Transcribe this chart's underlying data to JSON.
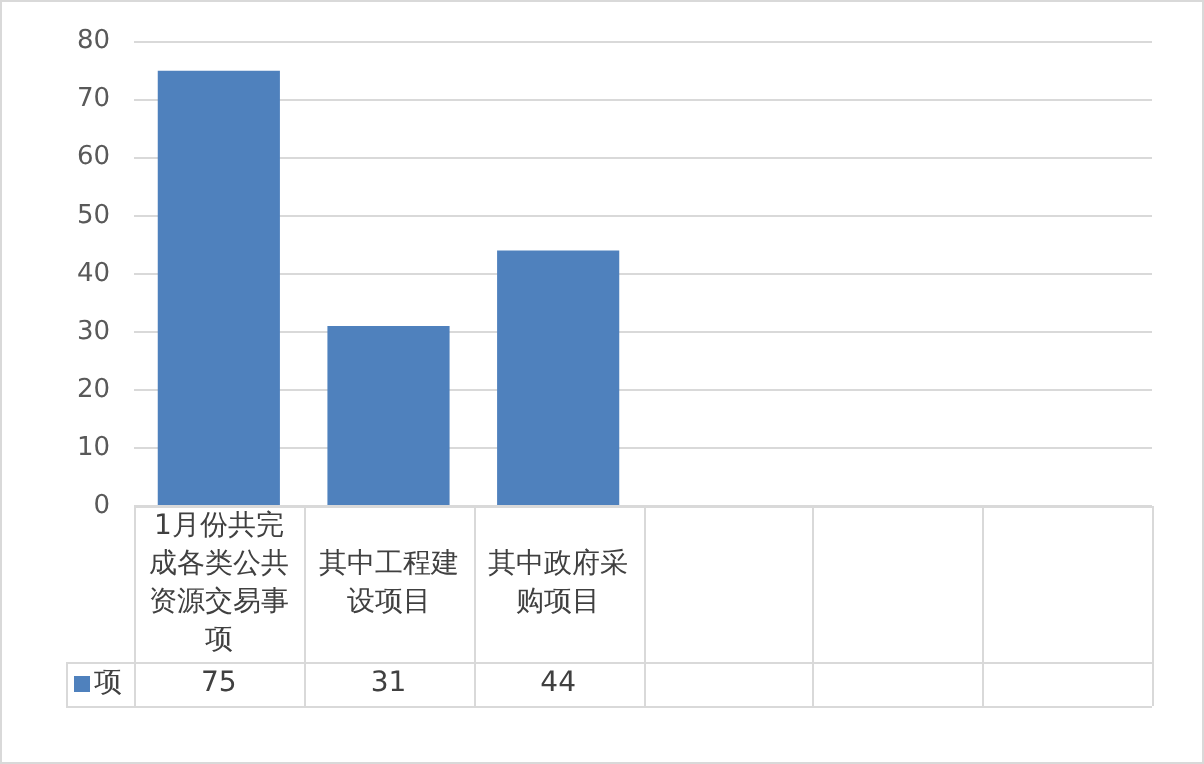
{
  "chart_data": {
    "type": "bar",
    "categories": [
      "1月份共完成各类公共资源交易事项",
      "其中工程建设项目",
      "其中政府采购项目",
      null,
      null,
      null
    ],
    "series": [
      {
        "name": "项",
        "color": "#4f81bd",
        "values": [
          75,
          31,
          44,
          null,
          null,
          null
        ]
      }
    ],
    "ylim": [
      0,
      80
    ],
    "yticks": [
      0,
      10,
      20,
      30,
      40,
      50,
      60,
      70,
      80
    ],
    "grid": "y",
    "legend": "bottom left",
    "data_labels": true
  }
}
